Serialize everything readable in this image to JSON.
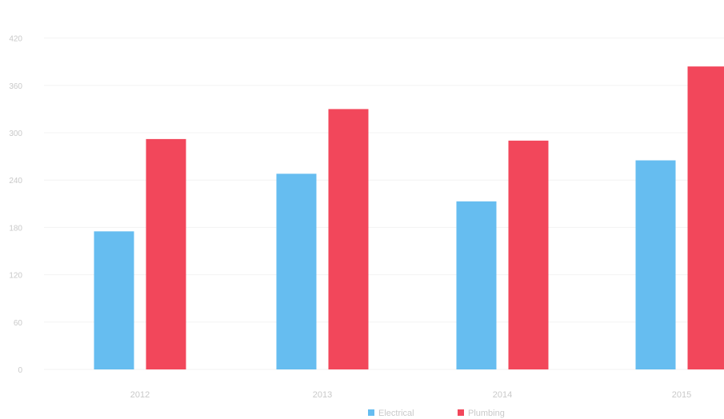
{
  "chart_data": {
    "type": "bar",
    "categories": [
      "2012",
      "2013",
      "2014",
      "2015"
    ],
    "series": [
      {
        "name": "Electrical",
        "color": "#66bdf0",
        "values": [
          175,
          248,
          213,
          265
        ]
      },
      {
        "name": "Plumbing",
        "color": "#f2475b",
        "values": [
          292,
          330,
          290,
          384
        ]
      }
    ],
    "ylim": [
      0,
      450
    ],
    "yticks": [
      0,
      60,
      120,
      180,
      240,
      300,
      360,
      420
    ],
    "ytick_labels": [
      "0",
      "60",
      "120",
      "180",
      "240",
      "300",
      "360",
      "420"
    ],
    "grid": true,
    "legend": "bottom-center"
  }
}
